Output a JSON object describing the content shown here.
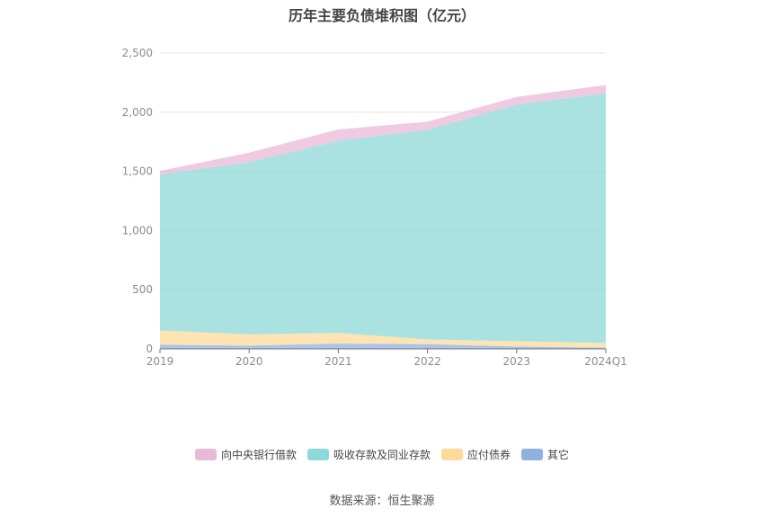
{
  "chart_data": {
    "type": "area",
    "stacked": true,
    "title": "历年主要负债堆积图（亿元）",
    "categories": [
      "2019",
      "2020",
      "2021",
      "2022",
      "2023",
      "2024Q1"
    ],
    "y_ticks": [
      "0",
      "500",
      "1,000",
      "1,500",
      "2,000",
      "2,500"
    ],
    "ylim": [
      0,
      2500
    ],
    "grid": true,
    "legend_position": "bottom",
    "series": [
      {
        "name": "其它",
        "color": "#8fb0e0",
        "values": [
          35,
          28,
          45,
          40,
          20,
          10
        ]
      },
      {
        "name": "应付债券",
        "color": "#fdd99a",
        "values": [
          120,
          95,
          90,
          40,
          45,
          40
        ]
      },
      {
        "name": "吸收存款及同业存款",
        "color": "#8ed8d8",
        "values": [
          1320,
          1455,
          1625,
          1770,
          2000,
          2110
        ]
      },
      {
        "name": "向中央银行借款",
        "color": "#eab8d8",
        "values": [
          30,
          80,
          95,
          70,
          65,
          70
        ]
      }
    ],
    "legend_order": [
      "向中央银行借款",
      "吸收存款及同业存款",
      "应付债券",
      "其它"
    ]
  },
  "source": "数据来源：恒生聚源"
}
